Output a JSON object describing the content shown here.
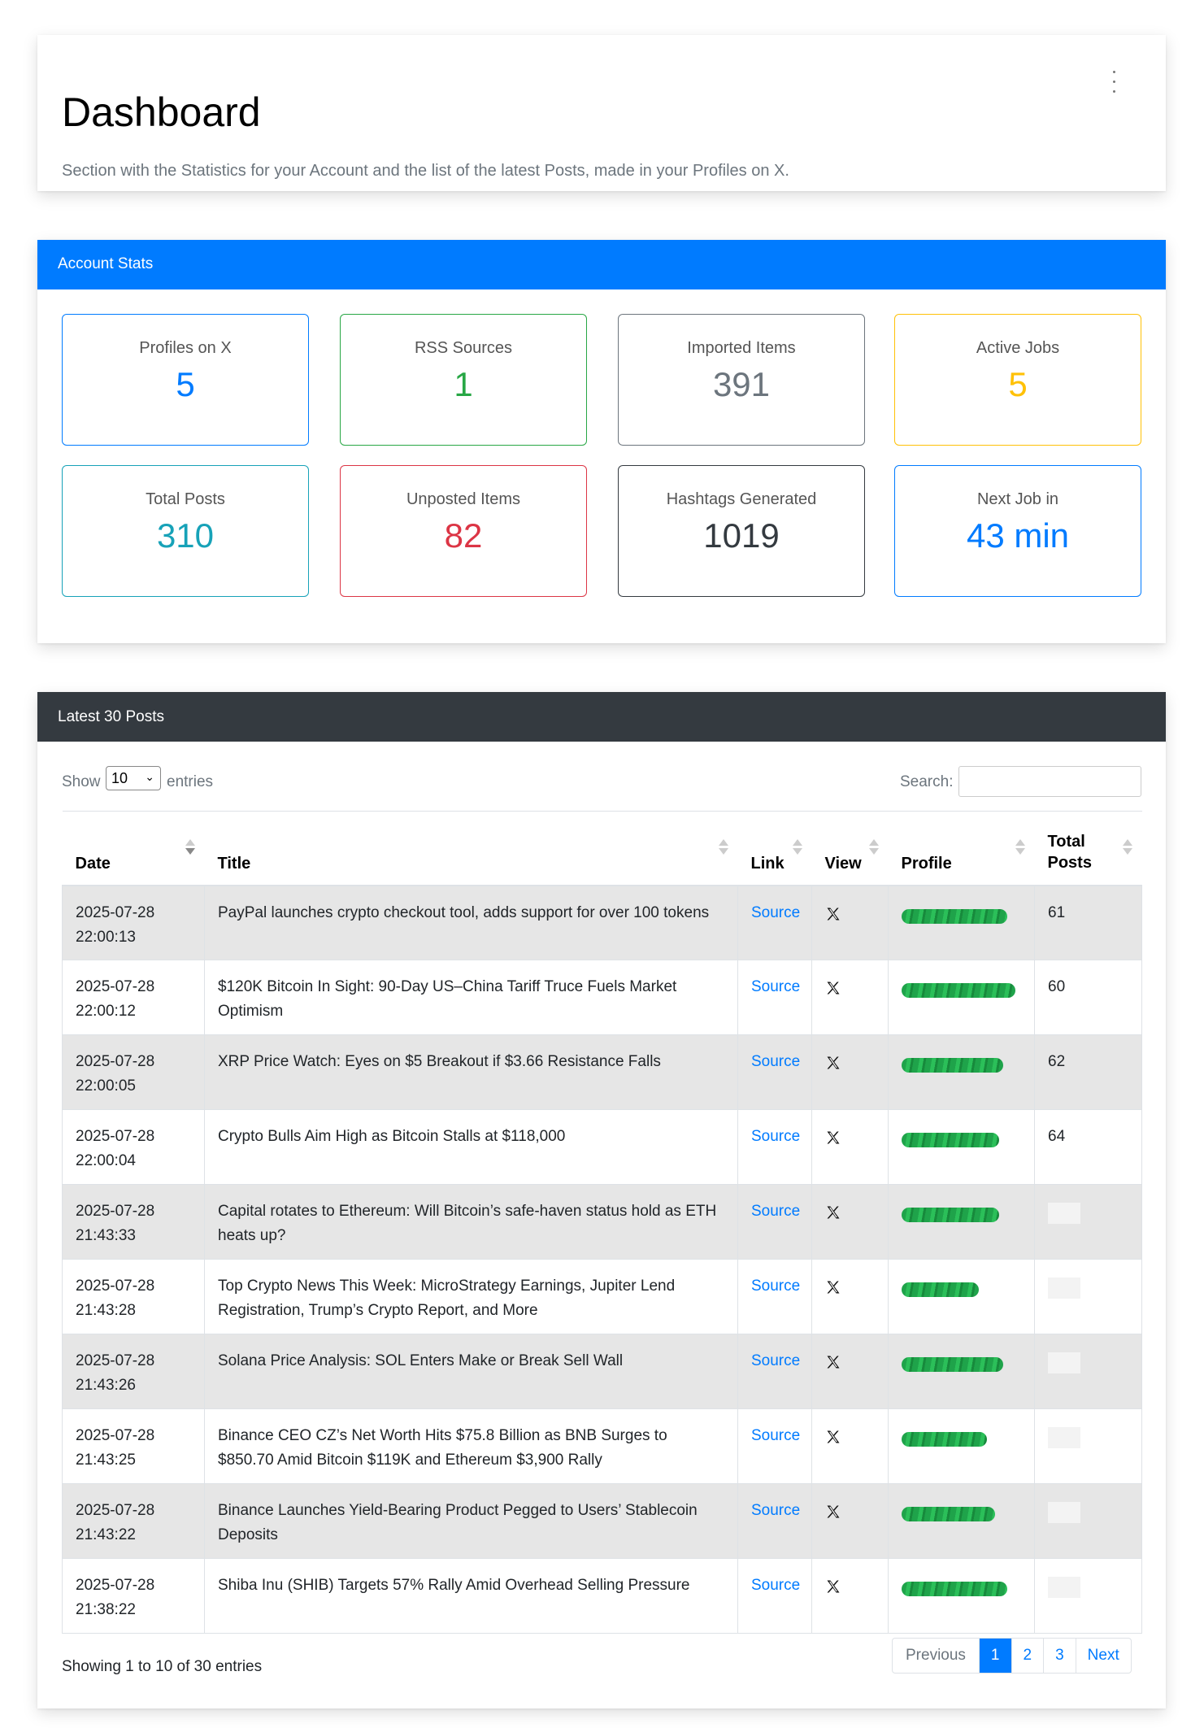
{
  "header": {
    "title": "Dashboard",
    "subtitle": "Section with the Statistics for your Account and the list of the latest Posts, made in your Profiles on X."
  },
  "stats_panel": {
    "title": "Account Stats",
    "stats": [
      {
        "label": "Profiles on X",
        "value": "5",
        "color": "#007bff"
      },
      {
        "label": "RSS Sources",
        "value": "1",
        "color": "#28a745"
      },
      {
        "label": "Imported Items",
        "value": "391",
        "color": "#6c757d"
      },
      {
        "label": "Active Jobs",
        "value": "5",
        "color": "#ffc107"
      },
      {
        "label": "Total Posts",
        "value": "310",
        "color": "#17a2b8"
      },
      {
        "label": "Unposted Items",
        "value": "82",
        "color": "#dc3545"
      },
      {
        "label": "Hashtags Generated",
        "value": "1019",
        "color": "#343a40"
      },
      {
        "label": "Next Job in",
        "value": "43 min",
        "color": "#007bff"
      }
    ]
  },
  "posts_panel": {
    "title": "Latest 30 Posts",
    "show_label": "Show",
    "page_size": "10",
    "entries_label": "entries",
    "search_label": "Search:",
    "columns": [
      "Date",
      "Title",
      "Link",
      "View",
      "Profile",
      "Total Posts"
    ],
    "rows": [
      {
        "date": "2025-07-28 22:00:13",
        "title": "PayPal launches crypto checkout tool, adds support for over 100 tokens",
        "link": "Source",
        "total": "61"
      },
      {
        "date": "2025-07-28 22:00:12",
        "title": "$120K Bitcoin In Sight: 90-Day US–China Tariff Truce Fuels Market Optimism",
        "link": "Source",
        "total": "60"
      },
      {
        "date": "2025-07-28 22:00:05",
        "title": "XRP Price Watch: Eyes on $5 Breakout if $3.66 Resistance Falls",
        "link": "Source",
        "total": "62"
      },
      {
        "date": "2025-07-28 22:00:04",
        "title": "Crypto Bulls Aim High as Bitcoin Stalls at $118,000",
        "link": "Source",
        "total": "64"
      },
      {
        "date": "2025-07-28 21:43:33",
        "title": "Capital rotates to Ethereum: Will Bitcoin’s safe-haven status hold as ETH heats up?",
        "link": "Source",
        "total": ""
      },
      {
        "date": "2025-07-28 21:43:28",
        "title": "Top Crypto News This Week: MicroStrategy Earnings, Jupiter Lend Registration, Trump’s Crypto Report, and More",
        "link": "Source",
        "total": ""
      },
      {
        "date": "2025-07-28 21:43:26",
        "title": "Solana Price Analysis: SOL Enters Make or Break Sell Wall",
        "link": "Source",
        "total": ""
      },
      {
        "date": "2025-07-28 21:43:25",
        "title": "Binance CEO CZ’s Net Worth Hits $75.8 Billion as BNB Surges to $850.70 Amid Bitcoin $119K and Ethereum $3,900 Rally",
        "link": "Source",
        "total": ""
      },
      {
        "date": "2025-07-28 21:43:22",
        "title": "Binance Launches Yield-Bearing Product Pegged to Users’ Stablecoin Deposits",
        "link": "Source",
        "total": ""
      },
      {
        "date": "2025-07-28 21:38:22",
        "title": "Shiba Inu (SHIB) Targets 57% Rally Amid Overhead Selling Pressure",
        "link": "Source",
        "total": ""
      }
    ],
    "showing_text": "Showing 1 to 10 of 30 entries",
    "pagination": [
      "Previous",
      "1",
      "2",
      "3",
      "Next"
    ]
  }
}
